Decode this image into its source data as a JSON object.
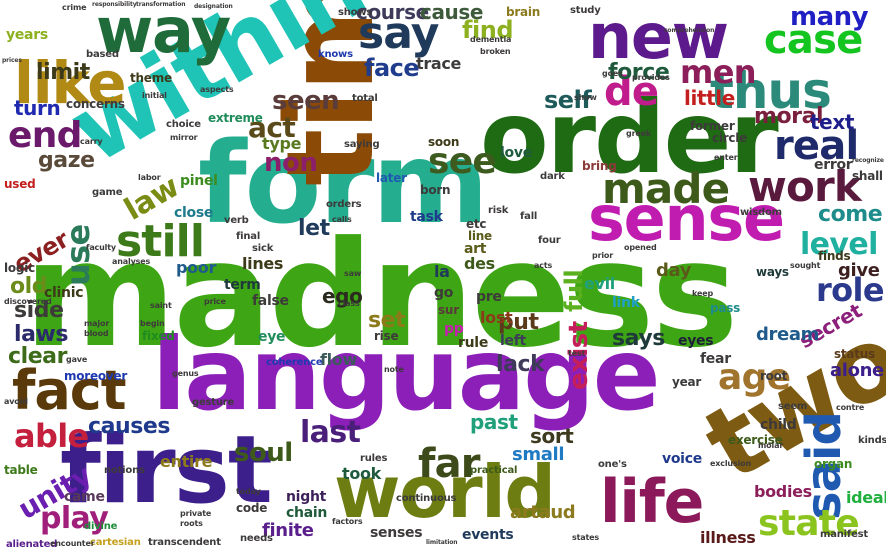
{
  "words": [
    {
      "text": "madness",
      "color": "#3ea614"
    },
    {
      "text": "language",
      "color": "#8c1fb8"
    },
    {
      "text": "form",
      "color": "#24ad8f"
    },
    {
      "text": "time",
      "color": "#8b4a06"
    },
    {
      "text": "order",
      "color": "#1f6b14"
    },
    {
      "text": "within",
      "color": "#20c4b6"
    },
    {
      "text": "first",
      "color": "#3d1f8c"
    },
    {
      "text": "two",
      "color": "#7d5b12"
    },
    {
      "text": "world",
      "color": "#6e7d12"
    },
    {
      "text": "new",
      "color": "#5c1a8c"
    },
    {
      "text": "way",
      "color": "#1f6b3a"
    },
    {
      "text": "sense",
      "color": "#c01cb0"
    },
    {
      "text": "fact",
      "color": "#5a3a0a"
    },
    {
      "text": "like",
      "color": "#b08a14"
    },
    {
      "text": "thus",
      "color": "#2b8a7a"
    },
    {
      "text": "life",
      "color": "#8c1a5a"
    },
    {
      "text": "said",
      "color": "#1f5ab0"
    },
    {
      "text": "made",
      "color": "#3d5a1a"
    },
    {
      "text": "work",
      "color": "#5a1a3d"
    },
    {
      "text": "still",
      "color": "#3d7a1a"
    },
    {
      "text": "say",
      "color": "#1f3a5a"
    },
    {
      "text": "de",
      "color": "#c01c8c"
    },
    {
      "text": "real",
      "color": "#1f2a6b"
    },
    {
      "text": "case",
      "color": "#14c41f"
    },
    {
      "text": "men",
      "color": "#8c1f5a"
    },
    {
      "text": "many",
      "color": "#1f1fc4"
    },
    {
      "text": "far",
      "color": "#3d4a1a"
    },
    {
      "text": "state",
      "color": "#8cc41f"
    },
    {
      "text": "age",
      "color": "#a0742c"
    },
    {
      "text": "end",
      "color": "#6b1a6b"
    },
    {
      "text": "see",
      "color": "#3d5a1f"
    },
    {
      "text": "act",
      "color": "#5a4a1a"
    },
    {
      "text": "able",
      "color": "#c41f3d"
    },
    {
      "text": "use",
      "color": "#2b7a5a"
    },
    {
      "text": "law",
      "color": "#7a8c14"
    },
    {
      "text": "unity",
      "color": "#6b1fb0"
    },
    {
      "text": "play",
      "color": "#a01f7a"
    },
    {
      "text": "last",
      "color": "#4a1f7a"
    },
    {
      "text": "soul",
      "color": "#3d5a1a"
    },
    {
      "text": "level",
      "color": "#1fb0a0"
    },
    {
      "text": "role",
      "color": "#2b3a8c"
    },
    {
      "text": "self",
      "color": "#1f5a5a"
    },
    {
      "text": "find",
      "color": "#8cb01f"
    },
    {
      "text": "limit",
      "color": "#3d3a1a"
    },
    {
      "text": "causes",
      "color": "#1f3a8c"
    },
    {
      "text": "gaze",
      "color": "#5a4a3a"
    },
    {
      "text": "turn",
      "color": "#1f2ab0"
    },
    {
      "text": "moral",
      "color": "#7a1f3d"
    },
    {
      "text": "little",
      "color": "#c41f1f"
    },
    {
      "text": "force",
      "color": "#1f5a3d"
    },
    {
      "text": "ever",
      "color": "#8c1f1f"
    },
    {
      "text": "old",
      "color": "#6b8c1a"
    },
    {
      "text": "side",
      "color": "#3d3a3a"
    },
    {
      "text": "laws",
      "color": "#2b2a6b"
    },
    {
      "text": "clear",
      "color": "#3d6b1a"
    },
    {
      "text": "non",
      "color": "#8c1f6b"
    },
    {
      "text": "seen",
      "color": "#5a3d3a"
    },
    {
      "text": "face",
      "color": "#1f3d8c"
    },
    {
      "text": "course",
      "color": "#3d3a5a"
    },
    {
      "text": "cause",
      "color": "#3d5a3a"
    },
    {
      "text": "come",
      "color": "#1f8c8c"
    },
    {
      "text": "text",
      "color": "#1f1f8c"
    },
    {
      "text": "exist",
      "color": "#c41f5a"
    },
    {
      "text": "says",
      "color": "#1f3a3a"
    },
    {
      "text": "full",
      "color": "#5ab01f"
    },
    {
      "text": "past",
      "color": "#1fa07a"
    },
    {
      "text": "sort",
      "color": "#3d3a1f"
    },
    {
      "text": "set",
      "color": "#8c7a1a"
    },
    {
      "text": "lack",
      "color": "#3d3a5a"
    },
    {
      "text": "put",
      "color": "#5a3a1a"
    },
    {
      "text": "entire",
      "color": "#8c7a1a"
    },
    {
      "text": "took",
      "color": "#1f5a3d"
    },
    {
      "text": "alone",
      "color": "#3d1f8c"
    },
    {
      "text": "secret",
      "color": "#8c1f7a"
    },
    {
      "text": "give",
      "color": "#3d1f1f"
    },
    {
      "text": "ideal",
      "color": "#1fb03d"
    },
    {
      "text": "dream",
      "color": "#1f5a8c"
    },
    {
      "text": "day",
      "color": "#5a5a1a"
    },
    {
      "text": "let",
      "color": "#1f3a5a"
    },
    {
      "text": "ego",
      "color": "#2b2a1f"
    },
    {
      "text": "artaud",
      "color": "#8c7a1f"
    },
    {
      "text": "small",
      "color": "#1f7ac4"
    },
    {
      "text": "exercise",
      "color": "#3d5a1a"
    },
    {
      "text": "illness",
      "color": "#5a1a1a"
    },
    {
      "text": "bodies",
      "color": "#8c1f5a"
    },
    {
      "text": "voice",
      "color": "#1f3a8c"
    },
    {
      "text": "child",
      "color": "#3d3a3a"
    },
    {
      "text": "finite",
      "color": "#5a1f8c"
    },
    {
      "text": "senses",
      "color": "#3d3a3a"
    },
    {
      "text": "events",
      "color": "#1f3a5a"
    },
    {
      "text": "chain",
      "color": "#1f5a3a"
    },
    {
      "text": "night",
      "color": "#3d1f5a"
    },
    {
      "text": "code",
      "color": "#3d3a3a"
    },
    {
      "text": "came",
      "color": "#5a3a5a"
    },
    {
      "text": "eyes",
      "color": "#1f1f3a"
    },
    {
      "text": "fear",
      "color": "#3d3a3a"
    },
    {
      "text": "status",
      "color": "#5a3a1a"
    },
    {
      "text": "poor",
      "color": "#1f5a8c"
    },
    {
      "text": "lines",
      "color": "#3d3a1a"
    },
    {
      "text": "term",
      "color": "#1f3a3a"
    },
    {
      "text": "false",
      "color": "#3d3a3a"
    },
    {
      "text": "eye",
      "color": "#1f8c5a"
    },
    {
      "text": "flow",
      "color": "#3d5a5a"
    },
    {
      "text": "moreover",
      "color": "#1f3ab0"
    },
    {
      "text": "close",
      "color": "#1f7a8c"
    },
    {
      "text": "pinel",
      "color": "#3d8c1f"
    },
    {
      "text": "type",
      "color": "#5a7a1f"
    },
    {
      "text": "lost",
      "color": "#8c3a1a"
    },
    {
      "text": "left",
      "color": "#3d3a5a"
    },
    {
      "text": "years",
      "color": "#8cb01f"
    },
    {
      "text": "rule",
      "color": "#3d3a1a"
    },
    {
      "text": "link",
      "color": "#1fa0c4"
    },
    {
      "text": "love",
      "color": "#1f5a3d"
    },
    {
      "text": "fixed",
      "color": "#1f8c1f"
    },
    {
      "text": "rise",
      "color": "#3d3a3a"
    },
    {
      "text": "pp",
      "color": "#c41fb0"
    },
    {
      "text": "des",
      "color": "#3d5a1a"
    },
    {
      "text": "art",
      "color": "#5a5a1a"
    },
    {
      "text": "la",
      "color": "#1f3a5a"
    },
    {
      "text": "go",
      "color": "#3d3a3a"
    },
    {
      "text": "sur",
      "color": "#5a3a3a"
    },
    {
      "text": "pre",
      "color": "#3d3a3a"
    },
    {
      "text": "clinic",
      "color": "#3d3a1a"
    },
    {
      "text": "ways",
      "color": "#1f3a3a"
    },
    {
      "text": "pass",
      "color": "#1f8c8c"
    },
    {
      "text": "etc",
      "color": "#3d3a3a"
    },
    {
      "text": "line",
      "color": "#5a5a1a"
    },
    {
      "text": "task",
      "color": "#1f3a8c"
    },
    {
      "text": "soon",
      "color": "#3d3a1a"
    },
    {
      "text": "bring",
      "color": "#8c3a3a"
    },
    {
      "text": "later",
      "color": "#1f5ab0"
    },
    {
      "text": "born",
      "color": "#3d3a3a"
    },
    {
      "text": "cartesian",
      "color": "#c4a01f"
    },
    {
      "text": "transcendent",
      "color": "#3d3a3a"
    },
    {
      "text": "alienated",
      "color": "#5a1f8c"
    },
    {
      "text": "encounter",
      "color": "#3d3a3a"
    },
    {
      "text": "divine",
      "color": "#1f8c3a"
    },
    {
      "text": "notions",
      "color": "#3d3a3a"
    },
    {
      "text": "table",
      "color": "#3d7a1a"
    },
    {
      "text": "logic",
      "color": "#3d3a3a"
    },
    {
      "text": "used",
      "color": "#c41f1f"
    },
    {
      "text": "concerns",
      "color": "#3d3a3a"
    },
    {
      "text": "theme",
      "color": "#3d3a1a"
    },
    {
      "text": "extreme",
      "color": "#1f8c5a"
    },
    {
      "text": "coherence",
      "color": "#1f3ab0"
    },
    {
      "text": "continuous",
      "color": "#3d3a3a"
    },
    {
      "text": "practical",
      "color": "#3d5a1a"
    },
    {
      "text": "evil",
      "color": "#1fa07a"
    },
    {
      "text": "finds",
      "color": "#3d3a1a"
    },
    {
      "text": "former",
      "color": "#3d3a3a"
    },
    {
      "text": "circle",
      "color": "#3d3a3a"
    },
    {
      "text": "error",
      "color": "#3d3a3a"
    },
    {
      "text": "shall",
      "color": "#3d3a3a"
    },
    {
      "text": "wisdom",
      "color": "#3d3a3a"
    },
    {
      "text": "root",
      "color": "#3d3a3a"
    },
    {
      "text": "year",
      "color": "#3d3a3a"
    },
    {
      "text": "organ",
      "color": "#3d8c1f"
    },
    {
      "text": "manifest",
      "color": "#3d3a3a"
    },
    {
      "text": "kinds",
      "color": "#3d3a3a"
    },
    {
      "text": "brain",
      "color": "#8c7a1f"
    },
    {
      "text": "shows",
      "color": "#3d3a3a"
    },
    {
      "text": "study",
      "color": "#3d3a3a"
    },
    {
      "text": "knows",
      "color": "#1f3ab0"
    },
    {
      "text": "saying",
      "color": "#3d3a3a"
    },
    {
      "text": "total",
      "color": "#3d3a3a"
    },
    {
      "text": "choice",
      "color": "#3d3a3a"
    },
    {
      "text": "based",
      "color": "#3d3a3a"
    },
    {
      "text": "game",
      "color": "#3d3a3a"
    },
    {
      "text": "verb",
      "color": "#3d3a3a"
    },
    {
      "text": "final",
      "color": "#3d3a3a"
    },
    {
      "text": "sick",
      "color": "#3d3a3a"
    },
    {
      "text": "orders",
      "color": "#3d3a3a"
    },
    {
      "text": "calls",
      "color": "#3d3a3a"
    },
    {
      "text": "dark",
      "color": "#3d3a3a"
    },
    {
      "text": "risk",
      "color": "#3d3a3a"
    },
    {
      "text": "four",
      "color": "#3d3a3a"
    },
    {
      "text": "fall",
      "color": "#3d3a3a"
    },
    {
      "text": "acts",
      "color": "#3d3a3a"
    },
    {
      "text": "prior",
      "color": "#3d3a3a"
    },
    {
      "text": "opened",
      "color": "#3d3a3a"
    },
    {
      "text": "sought",
      "color": "#3d3a3a"
    },
    {
      "text": "keep",
      "color": "#3d3a3a"
    },
    {
      "text": "note",
      "color": "#3d3a3a"
    },
    {
      "text": "seem",
      "color": "#3d3a3a"
    },
    {
      "text": "gesture",
      "color": "#3d3a3a"
    },
    {
      "text": "rules",
      "color": "#3d3a3a"
    },
    {
      "text": "one's",
      "color": "#3d3a3a"
    },
    {
      "text": "exclusion",
      "color": "#3d3a3a"
    },
    {
      "text": "factors",
      "color": "#3d3a3a"
    },
    {
      "text": "states",
      "color": "#3d3a3a"
    },
    {
      "text": "limitation",
      "color": "#3d3a3a"
    },
    {
      "text": "needs",
      "color": "#3d3a3a"
    },
    {
      "text": "today",
      "color": "#3d3a3a"
    },
    {
      "text": "roots",
      "color": "#3d3a3a"
    },
    {
      "text": "private",
      "color": "#3d3a3a"
    },
    {
      "text": "crime",
      "color": "#3d3a3a"
    },
    {
      "text": "prices",
      "color": "#3d3a3a"
    },
    {
      "text": "transformation",
      "color": "#3d3a3a"
    },
    {
      "text": "designation",
      "color": "#3d3a3a"
    },
    {
      "text": "responsibility",
      "color": "#3d3a3a"
    },
    {
      "text": "dementia",
      "color": "#3d3a3a"
    },
    {
      "text": "broken",
      "color": "#3d3a3a"
    },
    {
      "text": "mirror",
      "color": "#3d3a3a"
    },
    {
      "text": "labor",
      "color": "#3d3a3a"
    },
    {
      "text": "faculty",
      "color": "#3d3a3a"
    },
    {
      "text": "analyses",
      "color": "#3d3a3a"
    },
    {
      "text": "discovered",
      "color": "#3d3a3a"
    },
    {
      "text": "major",
      "color": "#3d3a3a"
    },
    {
      "text": "blood",
      "color": "#3d3a3a"
    },
    {
      "text": "gave",
      "color": "#3d3a3a"
    },
    {
      "text": "avoid",
      "color": "#3d3a3a"
    },
    {
      "text": "saint",
      "color": "#3d3a3a"
    },
    {
      "text": "price",
      "color": "#3d3a3a"
    },
    {
      "text": "begin",
      "color": "#3d3a3a"
    },
    {
      "text": "genus",
      "color": "#3d3a3a"
    },
    {
      "text": "class",
      "color": "#3d3a3a"
    },
    {
      "text": "saw",
      "color": "#3d3a3a"
    },
    {
      "text": "test",
      "color": "#3d3a3a"
    },
    {
      "text": "molar",
      "color": "#3d3a3a"
    },
    {
      "text": "contre",
      "color": "#3d3a3a"
    },
    {
      "text": "trace",
      "color": "#3d3a3a"
    },
    {
      "text": "greek",
      "color": "#3d3a3a"
    },
    {
      "text": "enter",
      "color": "#3d3a3a"
    },
    {
      "text": "recognize",
      "color": "#3d3a3a"
    },
    {
      "text": "aspects",
      "color": "#3d3a3a"
    },
    {
      "text": "initial",
      "color": "#3d3a3a"
    },
    {
      "text": "carry",
      "color": "#3d3a3a"
    },
    {
      "text": "comprehension",
      "color": "#3d3a3a"
    },
    {
      "text": "provides",
      "color": "#3d3a3a"
    },
    {
      "text": "goes",
      "color": "#3d3a3a"
    },
    {
      "text": "show",
      "color": "#3d3a3a"
    }
  ]
}
